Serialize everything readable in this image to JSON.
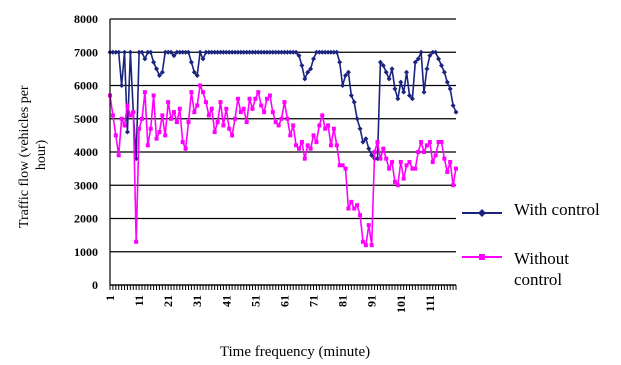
{
  "chart_data": {
    "type": "line",
    "title": "",
    "xlabel": "Time frequency (minute)",
    "ylabel": "Traffic flow (vehicles per hour)",
    "ylabel_lines": [
      "Traffic flow (vehicles per",
      "hour)"
    ],
    "ylim": [
      0,
      8000
    ],
    "yticks": [
      0,
      1000,
      2000,
      3000,
      4000,
      5000,
      6000,
      7000,
      8000
    ],
    "ytick_labels": [
      "0",
      "1000",
      "2000",
      "3000",
      "4000",
      "5000",
      "6000",
      "7000",
      "8000"
    ],
    "xlim": [
      1,
      120
    ],
    "xticks": [
      1,
      11,
      21,
      31,
      41,
      51,
      61,
      71,
      81,
      91,
      101,
      111
    ],
    "xtick_labels": [
      "1",
      "11",
      "21",
      "31",
      "41",
      "51",
      "61",
      "71",
      "81",
      "91",
      "101",
      "111"
    ],
    "grid": "horizontal",
    "legend_position": "right",
    "colors": {
      "with_control": "#1a237e",
      "without_control": "#ff00ff"
    },
    "series": [
      {
        "name": "With control",
        "x": [
          1,
          2,
          3,
          4,
          5,
          6,
          7,
          8,
          9,
          10,
          11,
          12,
          13,
          14,
          15,
          16,
          17,
          18,
          19,
          20,
          21,
          22,
          23,
          24,
          25,
          26,
          27,
          28,
          29,
          30,
          31,
          32,
          33,
          34,
          35,
          36,
          37,
          38,
          39,
          40,
          41,
          42,
          43,
          44,
          45,
          46,
          47,
          48,
          49,
          50,
          51,
          52,
          53,
          54,
          55,
          56,
          57,
          58,
          59,
          60,
          61,
          62,
          63,
          64,
          65,
          66,
          67,
          68,
          69,
          70,
          71,
          72,
          73,
          74,
          75,
          76,
          77,
          78,
          79,
          80,
          81,
          82,
          83,
          84,
          85,
          86,
          87,
          88,
          89,
          90,
          91,
          92,
          93,
          94,
          95,
          96,
          97,
          98,
          99,
          100,
          101,
          102,
          103,
          104,
          105,
          106,
          107,
          108,
          109,
          110,
          111,
          112,
          113,
          114,
          115,
          116,
          117,
          118,
          119,
          120
        ],
        "values": [
          7000,
          7000,
          7000,
          7000,
          6000,
          7000,
          4600,
          7000,
          5200,
          3800,
          7000,
          7000,
          6800,
          7000,
          7000,
          6700,
          6500,
          6300,
          6400,
          7000,
          7000,
          7000,
          6900,
          7000,
          7000,
          7000,
          7000,
          7000,
          6700,
          6400,
          6300,
          7000,
          6800,
          7000,
          7000,
          7000,
          7000,
          7000,
          7000,
          7000,
          7000,
          7000,
          7000,
          7000,
          7000,
          7000,
          7000,
          7000,
          7000,
          7000,
          7000,
          7000,
          7000,
          7000,
          7000,
          7000,
          7000,
          7000,
          7000,
          7000,
          7000,
          7000,
          7000,
          7000,
          7000,
          6900,
          6600,
          6200,
          6400,
          6500,
          6800,
          7000,
          7000,
          7000,
          7000,
          7000,
          7000,
          7000,
          7000,
          6700,
          6000,
          6300,
          6400,
          5700,
          5500,
          5000,
          4700,
          4300,
          4400,
          4100,
          3900,
          3800,
          3800,
          6700,
          6600,
          6400,
          6200,
          6500,
          5900,
          5600,
          6100,
          5800,
          6400,
          5700,
          5600,
          6700,
          6800,
          7000,
          5800,
          6500,
          6900,
          7000,
          7000,
          6800,
          6600,
          6400,
          6100,
          5900,
          5400,
          5200
        ]
      },
      {
        "name": "Without control",
        "x": [
          1,
          2,
          3,
          4,
          5,
          6,
          7,
          8,
          9,
          10,
          11,
          12,
          13,
          14,
          15,
          16,
          17,
          18,
          19,
          20,
          21,
          22,
          23,
          24,
          25,
          26,
          27,
          28,
          29,
          30,
          31,
          32,
          33,
          34,
          35,
          36,
          37,
          38,
          39,
          40,
          41,
          42,
          43,
          44,
          45,
          46,
          47,
          48,
          49,
          50,
          51,
          52,
          53,
          54,
          55,
          56,
          57,
          58,
          59,
          60,
          61,
          62,
          63,
          64,
          65,
          66,
          67,
          68,
          69,
          70,
          71,
          72,
          73,
          74,
          75,
          76,
          77,
          78,
          79,
          80,
          81,
          82,
          83,
          84,
          85,
          86,
          87,
          88,
          89,
          90,
          91,
          92,
          93,
          94,
          95,
          96,
          97,
          98,
          99,
          100,
          101,
          102,
          103,
          104,
          105,
          106,
          107,
          108,
          109,
          110,
          111,
          112,
          113,
          114,
          115,
          116,
          117,
          118,
          119,
          120
        ],
        "values": [
          5700,
          5100,
          4500,
          3900,
          5000,
          4800,
          5400,
          5100,
          5200,
          1300,
          4700,
          5000,
          5800,
          4200,
          4700,
          5700,
          4400,
          4600,
          5100,
          4500,
          5500,
          5000,
          5200,
          4900,
          5300,
          4300,
          4100,
          4900,
          5800,
          5200,
          5400,
          6000,
          5800,
          5500,
          5100,
          5300,
          4600,
          4900,
          5500,
          4800,
          5300,
          4700,
          4500,
          5000,
          5600,
          5200,
          5300,
          4900,
          5600,
          5300,
          5600,
          5800,
          5400,
          5200,
          5600,
          5700,
          5200,
          4900,
          4800,
          5000,
          5500,
          5000,
          4500,
          4800,
          4200,
          4100,
          4300,
          3800,
          4200,
          4100,
          4500,
          4300,
          4800,
          5100,
          4700,
          4800,
          4200,
          4700,
          4200,
          3600,
          3600,
          3500,
          2300,
          2500,
          2300,
          2400,
          2100,
          1300,
          1200,
          1800,
          1200,
          4000,
          4300,
          3800,
          4100,
          3800,
          3500,
          3700,
          3100,
          3000,
          3700,
          3200,
          3600,
          3700,
          3500,
          3500,
          4000,
          4300,
          4000,
          4200,
          4300,
          3700,
          3900,
          4300,
          4300,
          3800,
          3400,
          3700,
          3000,
          3500
        ]
      }
    ],
    "legend": [
      {
        "label": "With control",
        "series": 0
      },
      {
        "label_lines": [
          "Without",
          "control"
        ],
        "series": 1
      }
    ]
  }
}
